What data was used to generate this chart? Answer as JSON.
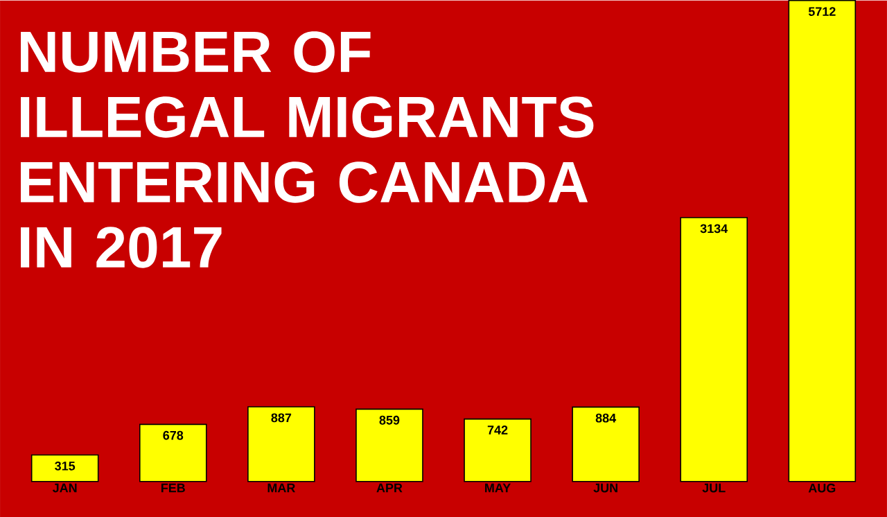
{
  "chart_data": {
    "type": "bar",
    "title": "NUMBER OF ILLEGAL MIGRANTS ENTERING CANADA IN 2017",
    "categories": [
      "JAN",
      "FEB",
      "MAR",
      "APR",
      "MAY",
      "JUN",
      "JUL",
      "AUG"
    ],
    "values": [
      315,
      678,
      887,
      859,
      742,
      884,
      3134,
      5712
    ],
    "color": "#ffff00",
    "ylim": [
      0,
      5712
    ],
    "data_labels": true
  }
}
